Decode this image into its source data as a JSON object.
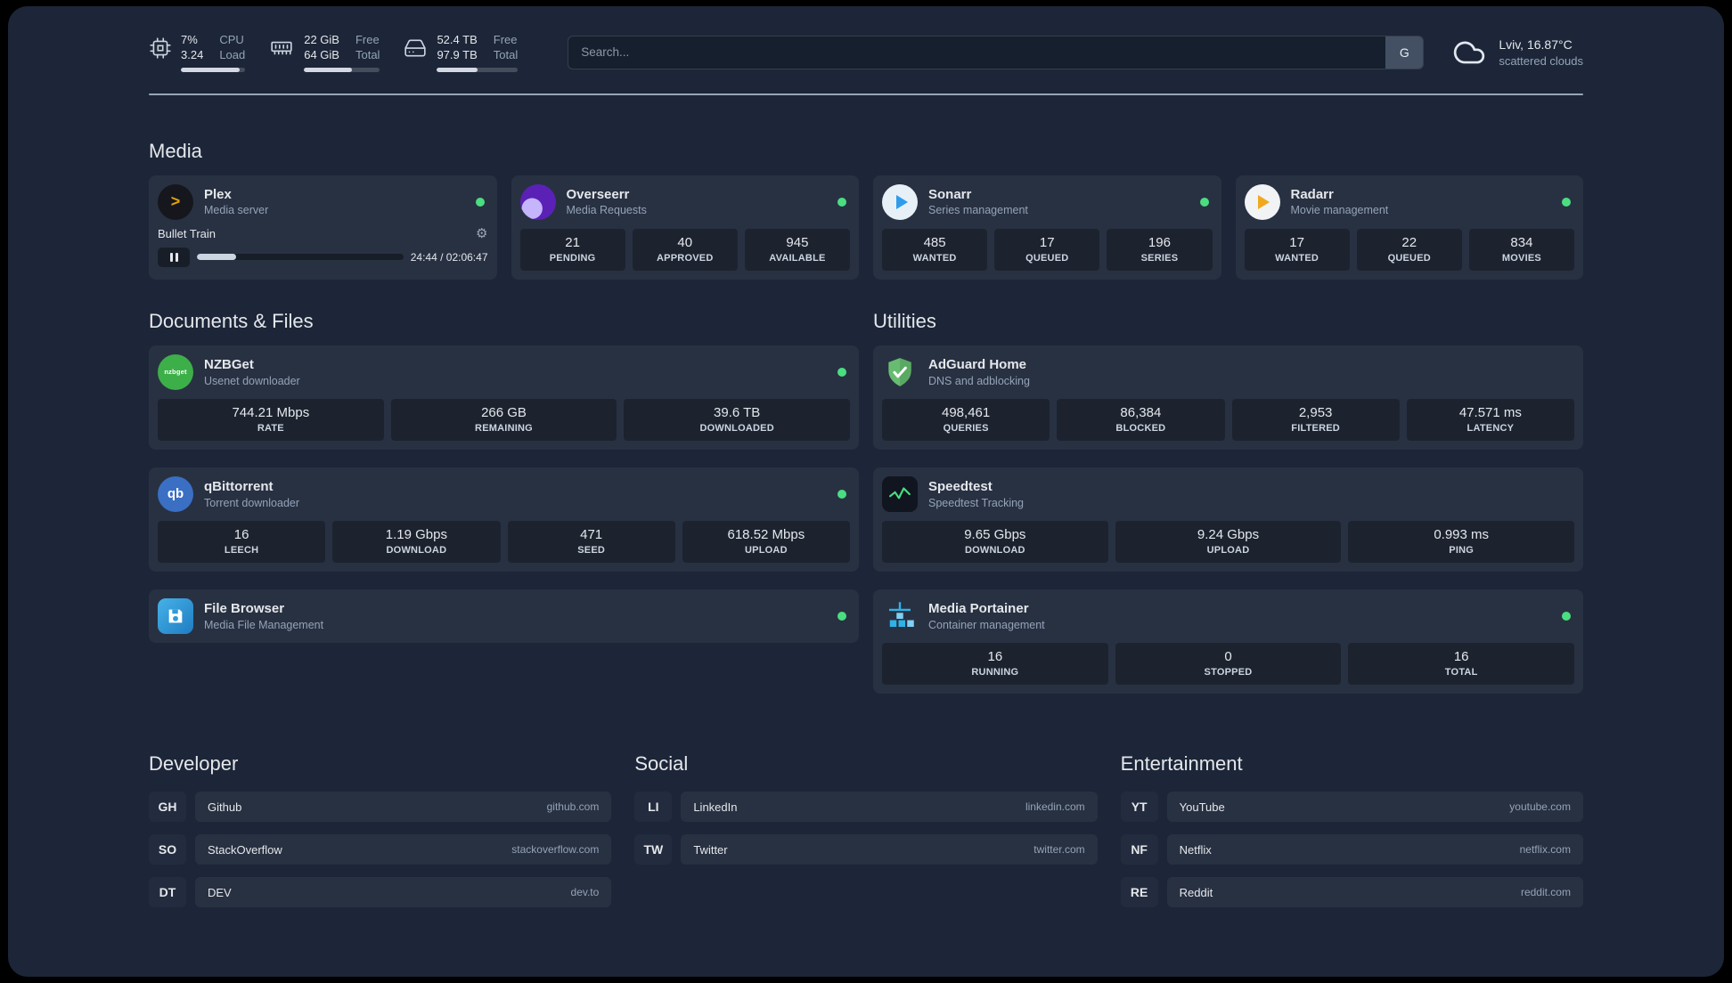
{
  "header": {
    "cpu": {
      "value1": "7%",
      "value2": "3.24",
      "label1": "CPU",
      "label2": "Load",
      "progress_pct": 92
    },
    "memory": {
      "value1": "22 GiB",
      "value2": "64 GiB",
      "label1": "Free",
      "label2": "Total",
      "progress_pct": 63
    },
    "disk": {
      "value1": "52.4 TB",
      "value2": "97.9 TB",
      "label1": "Free",
      "label2": "Total",
      "progress_pct": 50
    },
    "search": {
      "placeholder": "Search...",
      "provider_button": "G"
    },
    "weather": {
      "location": "Lviv, 16.87°C",
      "condition": "scattered clouds"
    }
  },
  "sections": {
    "media": {
      "title": "Media",
      "plex": {
        "name": "Plex",
        "description": "Media server",
        "icon_text": ">",
        "now_playing": {
          "title": "Bullet Train",
          "time": "24:44 / 02:06:47",
          "progress_pct": 19
        }
      },
      "overseerr": {
        "name": "Overseerr",
        "description": "Media Requests",
        "stats": [
          {
            "value": "21",
            "label": "PENDING"
          },
          {
            "value": "40",
            "label": "APPROVED"
          },
          {
            "value": "945",
            "label": "AVAILABLE"
          }
        ]
      },
      "sonarr": {
        "name": "Sonarr",
        "description": "Series management",
        "stats": [
          {
            "value": "485",
            "label": "WANTED"
          },
          {
            "value": "17",
            "label": "QUEUED"
          },
          {
            "value": "196",
            "label": "SERIES"
          }
        ]
      },
      "radarr": {
        "name": "Radarr",
        "description": "Movie management",
        "stats": [
          {
            "value": "17",
            "label": "WANTED"
          },
          {
            "value": "22",
            "label": "QUEUED"
          },
          {
            "value": "834",
            "label": "MOVIES"
          }
        ]
      }
    },
    "documents": {
      "title": "Documents & Files",
      "nzbget": {
        "name": "NZBGet",
        "description": "Usenet downloader",
        "icon_text": "nzbget",
        "stats": [
          {
            "value": "744.21 Mbps",
            "label": "RATE"
          },
          {
            "value": "266 GB",
            "label": "REMAINING"
          },
          {
            "value": "39.6 TB",
            "label": "DOWNLOADED"
          }
        ]
      },
      "qbittorrent": {
        "name": "qBittorrent",
        "description": "Torrent downloader",
        "icon_text": "qb",
        "stats": [
          {
            "value": "16",
            "label": "LEECH"
          },
          {
            "value": "1.19 Gbps",
            "label": "DOWNLOAD"
          },
          {
            "value": "471",
            "label": "SEED"
          },
          {
            "value": "618.52 Mbps",
            "label": "UPLOAD"
          }
        ]
      },
      "filebrowser": {
        "name": "File Browser",
        "description": "Media File Management"
      }
    },
    "utilities": {
      "title": "Utilities",
      "adguard": {
        "name": "AdGuard Home",
        "description": "DNS and adblocking",
        "stats": [
          {
            "value": "498,461",
            "label": "QUERIES"
          },
          {
            "value": "86,384",
            "label": "BLOCKED"
          },
          {
            "value": "2,953",
            "label": "FILTERED"
          },
          {
            "value": "47.571 ms",
            "label": "LATENCY"
          }
        ]
      },
      "speedtest": {
        "name": "Speedtest",
        "description": "Speedtest Tracking",
        "stats": [
          {
            "value": "9.65 Gbps",
            "label": "DOWNLOAD"
          },
          {
            "value": "9.24 Gbps",
            "label": "UPLOAD"
          },
          {
            "value": "0.993 ms",
            "label": "PING"
          }
        ]
      },
      "portainer": {
        "name": "Media Portainer",
        "description": "Container management",
        "stats": [
          {
            "value": "16",
            "label": "RUNNING"
          },
          {
            "value": "0",
            "label": "STOPPED"
          },
          {
            "value": "16",
            "label": "TOTAL"
          }
        ]
      }
    },
    "bookmarks": {
      "developer": {
        "title": "Developer",
        "links": [
          {
            "abbr": "GH",
            "name": "Github",
            "domain": "github.com"
          },
          {
            "abbr": "SO",
            "name": "StackOverflow",
            "domain": "stackoverflow.com"
          },
          {
            "abbr": "DT",
            "name": "DEV",
            "domain": "dev.to"
          }
        ]
      },
      "social": {
        "title": "Social",
        "links": [
          {
            "abbr": "LI",
            "name": "LinkedIn",
            "domain": "linkedin.com"
          },
          {
            "abbr": "TW",
            "name": "Twitter",
            "domain": "twitter.com"
          }
        ]
      },
      "entertainment": {
        "title": "Entertainment",
        "links": [
          {
            "abbr": "YT",
            "name": "YouTube",
            "domain": "youtube.com"
          },
          {
            "abbr": "NF",
            "name": "Netflix",
            "domain": "netflix.com"
          },
          {
            "abbr": "RE",
            "name": "Reddit",
            "domain": "reddit.com"
          }
        ]
      }
    }
  },
  "colors": {
    "status_online": "#4ade80",
    "accent_amber": "#e5a00d"
  }
}
